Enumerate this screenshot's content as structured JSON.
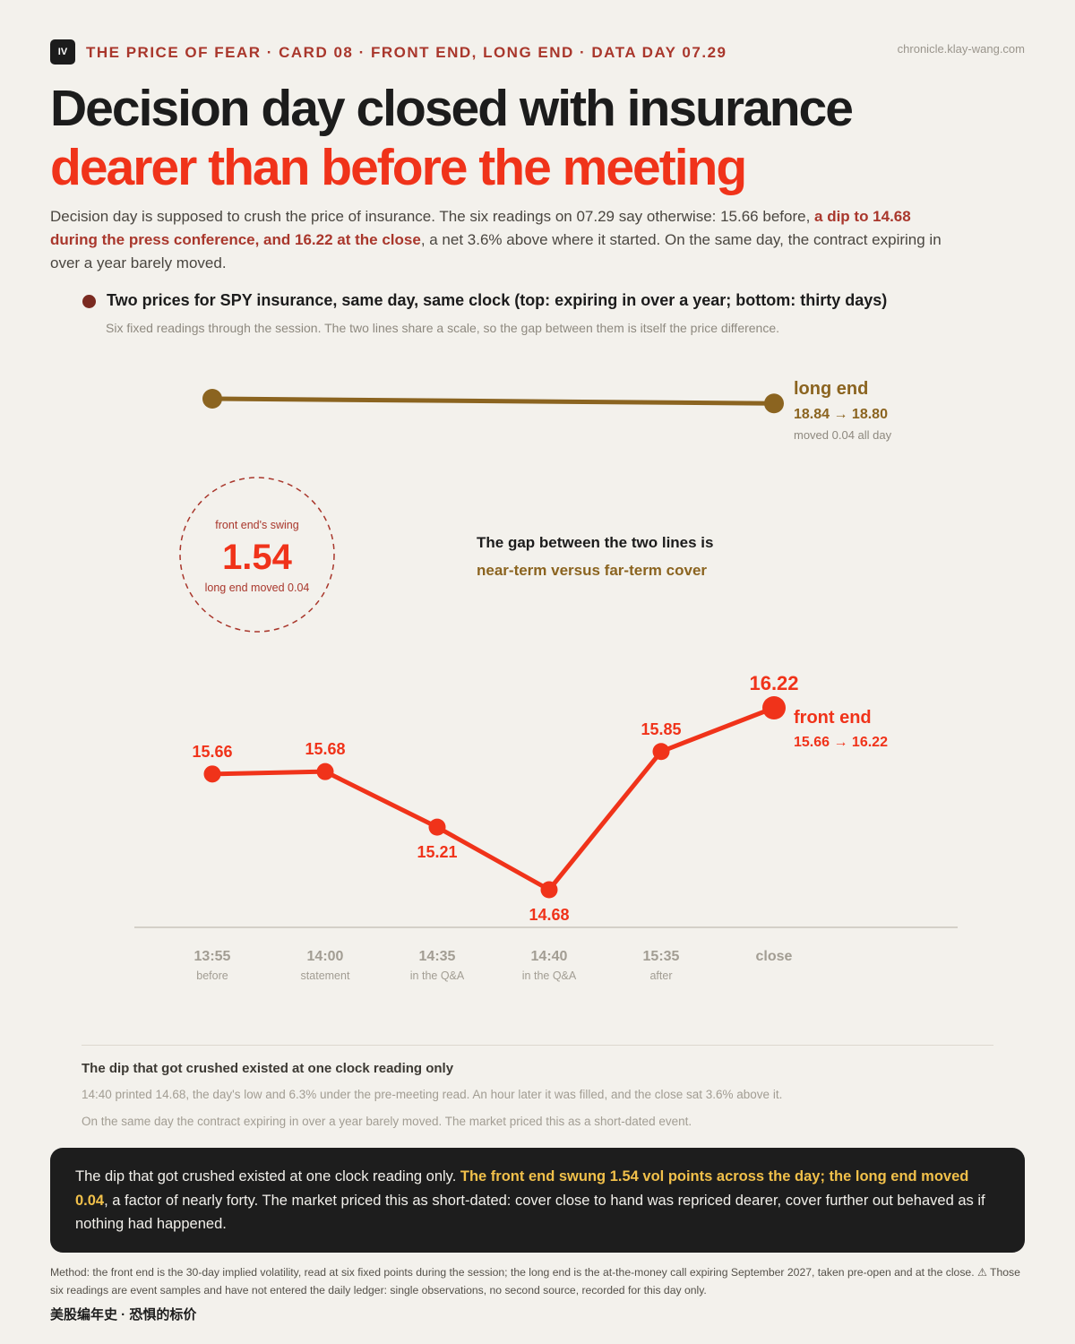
{
  "header": {
    "badge": "IV",
    "kicker": "THE PRICE OF FEAR · CARD 08 · FRONT END, LONG END · DATA DAY 07.29",
    "site": "chronicle.klay-wang.com",
    "headline_line1": "Decision day closed with insurance",
    "headline_line2": "dearer than before the meeting"
  },
  "lede": {
    "part1": "Decision day is supposed to crush the price of insurance. The six readings on 07.29 say otherwise: 15.66 before, ",
    "highlight": "a dip to 14.68 during the press conference, and 16.22 at the close",
    "part2": ", a net 3.6% above where it started. On the same day, the contract expiring in over a year barely moved."
  },
  "chart_header": {
    "title": "Two prices for SPY insurance, same day, same clock (top: expiring in over a year; bottom: thirty days)",
    "subtitle": "Six fixed readings through the session. The two lines share a scale, so the gap between them is itself the price difference."
  },
  "chart_data": {
    "type": "line",
    "categories": [
      {
        "time": "13:55",
        "label": "before"
      },
      {
        "time": "14:00",
        "label": "statement"
      },
      {
        "time": "14:35",
        "label": "in the Q&A"
      },
      {
        "time": "14:40",
        "label": "in the Q&A"
      },
      {
        "time": "15:35",
        "label": "after"
      },
      {
        "time": "close",
        "label": ""
      }
    ],
    "series": [
      {
        "name": "long end",
        "range_text": "18.84 → 18.80",
        "note": "moved 0.04 all day",
        "points": [
          {
            "x_index": 0,
            "y": 18.84
          },
          {
            "x_index": 5,
            "y": 18.8
          }
        ],
        "color": "#8b6420"
      },
      {
        "name": "front end",
        "range_text": "15.66 → 16.22",
        "values": [
          15.66,
          15.68,
          15.21,
          14.68,
          15.85,
          16.22
        ],
        "value_labels": [
          "15.66",
          "15.68",
          "15.21",
          "14.68",
          "15.85",
          "16.22"
        ],
        "color": "#f0331a"
      }
    ],
    "annotations": {
      "swing_label": "front end's swing",
      "swing_value": "1.54",
      "swing_note": "long end moved 0.04",
      "gap_line1": "The gap between the two lines is",
      "gap_line2": "near-term versus far-term cover"
    }
  },
  "notes": {
    "title": "The dip that got crushed existed at one clock reading only",
    "line1": "14:40 printed 14.68, the day's low and 6.3% under the pre-meeting read. An hour later it was filled, and the close sat 3.6% above it.",
    "line2": "On the same day the contract expiring in over a year barely moved. The market priced this as a short-dated event."
  },
  "callout": {
    "part1": "The dip that got crushed existed at one clock reading only. ",
    "highlight": "The front end swung 1.54 vol points across the day; the long end moved 0.04",
    "part2": ", a factor of nearly forty. The market priced this as short-dated: cover close to hand was repriced dearer, cover further out behaved as if nothing had happened."
  },
  "method": "Method: the front end is the 30-day implied volatility, read at six fixed points during the session; the long end is the at-the-money call expiring September 2027, taken pre-open and at the close. ⚠ Those six readings are event samples and have not entered the daily ledger: single observations, no second source, recorded for this day only.",
  "footer": "美股编年史 · 恐惧的标价"
}
